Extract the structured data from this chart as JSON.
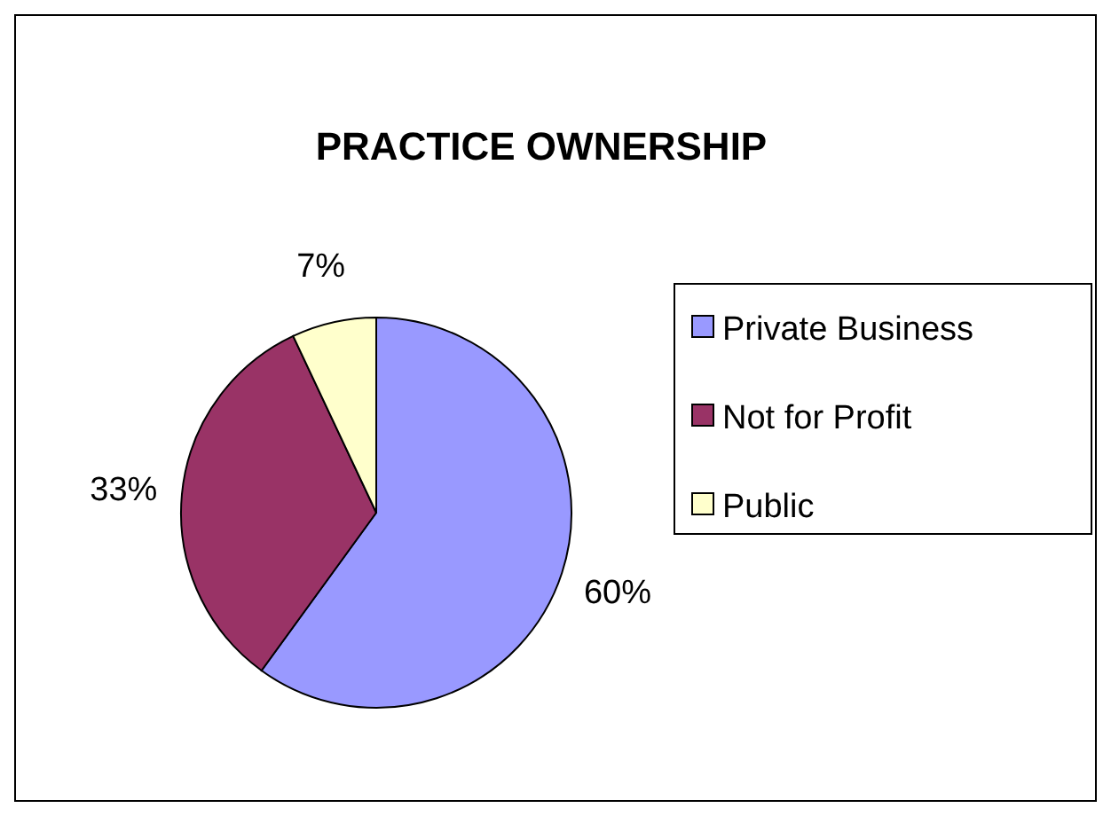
{
  "chart_data": {
    "type": "pie",
    "title": "PRACTICE OWNERSHIP",
    "categories": [
      "Private Business",
      "Not for Profit",
      "Public"
    ],
    "values": [
      60,
      33,
      7
    ],
    "colors": [
      "#9999ff",
      "#993366",
      "#ffffcc"
    ],
    "value_labels": [
      "60%",
      "33%",
      "7%"
    ],
    "legend": "right"
  }
}
